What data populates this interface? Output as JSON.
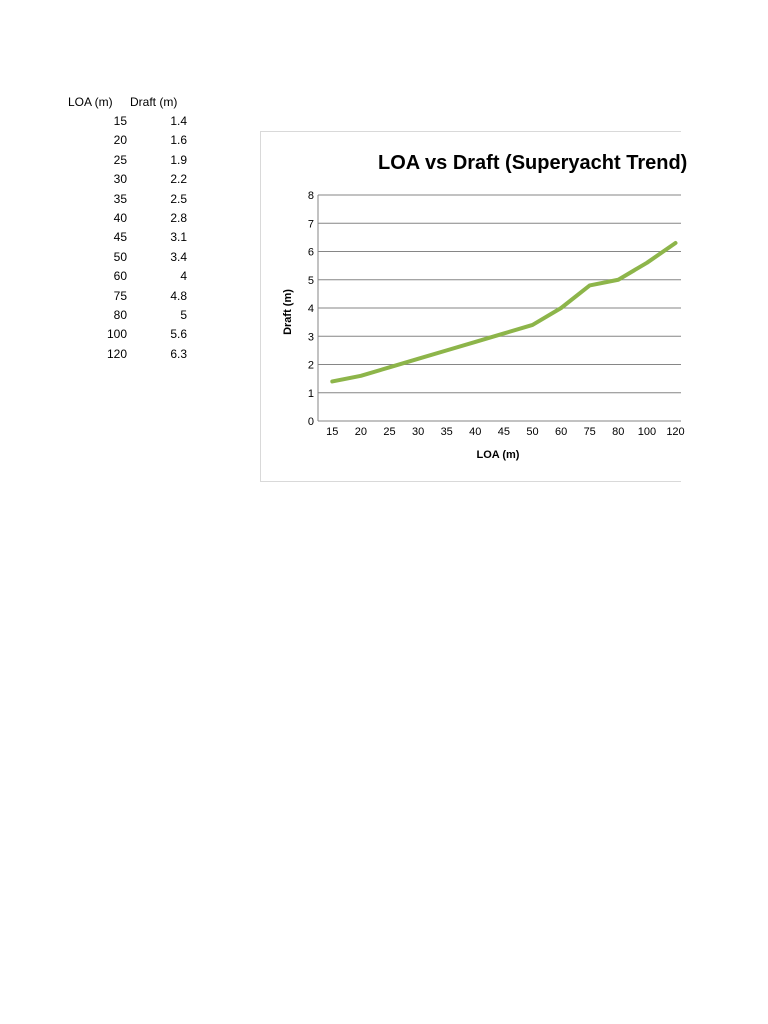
{
  "table": {
    "headers": [
      "LOA (m)",
      "Draft (m)"
    ],
    "rows": [
      [
        "15",
        "1.4"
      ],
      [
        "20",
        "1.6"
      ],
      [
        "25",
        "1.9"
      ],
      [
        "30",
        "2.2"
      ],
      [
        "35",
        "2.5"
      ],
      [
        "40",
        "2.8"
      ],
      [
        "45",
        "3.1"
      ],
      [
        "50",
        "3.4"
      ],
      [
        "60",
        "4"
      ],
      [
        "75",
        "4.8"
      ],
      [
        "80",
        "5"
      ],
      [
        "100",
        "5.6"
      ],
      [
        "120",
        "6.3"
      ]
    ]
  },
  "chart_data": {
    "type": "line",
    "title": "LOA vs Draft (Superyacht Trend)",
    "xlabel": "LOA (m)",
    "ylabel": "Draft (m)",
    "categories": [
      "15",
      "20",
      "25",
      "30",
      "35",
      "40",
      "45",
      "50",
      "60",
      "75",
      "80",
      "100",
      "120"
    ],
    "series": [
      {
        "values": [
          1.4,
          1.6,
          1.9,
          2.2,
          2.5,
          2.8,
          3.1,
          3.4,
          4,
          4.8,
          5,
          5.6,
          6.3
        ],
        "color": "#8db54a"
      }
    ],
    "ylim": [
      0,
      8
    ],
    "yticks": [
      "0",
      "1",
      "2",
      "3",
      "4",
      "5",
      "6",
      "7",
      "8"
    ],
    "grid": true,
    "legend": "none"
  }
}
